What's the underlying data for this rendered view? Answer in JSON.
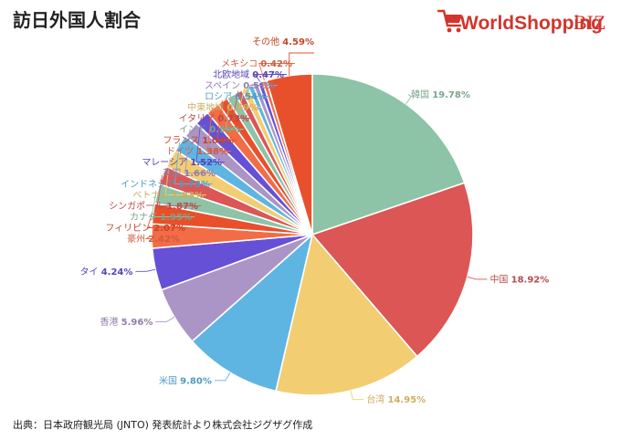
{
  "title": "訪日外国人割合",
  "logo": {
    "brand_world": "World",
    "brand_shopping": "Shopping",
    "brand_biz": "BIZ",
    "icon": "shopping-cart-icon"
  },
  "source": "出典：日本政府観光局 (JNTO) 発表統計より株式会社ジグザグ作成",
  "chart_data": {
    "type": "pie",
    "title": "訪日外国人割合",
    "unit": "%",
    "slices": [
      {
        "label": "韓国",
        "value": 19.78,
        "color": "#8dc3a6"
      },
      {
        "label": "中国",
        "value": 18.92,
        "color": "#dc5656"
      },
      {
        "label": "台湾",
        "value": 14.95,
        "color": "#f2cd72"
      },
      {
        "label": "米国",
        "value": 9.8,
        "color": "#5fb5e2"
      },
      {
        "label": "香港",
        "value": 5.96,
        "color": "#ab94c6"
      },
      {
        "label": "タイ",
        "value": 4.24,
        "color": "#6650d6"
      },
      {
        "label": "豪州",
        "value": 2.42,
        "color": "#f26c46"
      },
      {
        "label": "フィリピン",
        "value": 2.07,
        "color": "#e8502c"
      },
      {
        "label": "カナダ",
        "value": 1.95,
        "color": "#8dc3a6"
      },
      {
        "label": "シンガポール",
        "value": 1.87,
        "color": "#dc5656"
      },
      {
        "label": "ベトナム",
        "value": 1.83,
        "color": "#f2cd72"
      },
      {
        "label": "インドネシア",
        "value": 1.73,
        "color": "#5fb5e2"
      },
      {
        "label": "英国",
        "value": 1.66,
        "color": "#ab94c6"
      },
      {
        "label": "マレーシア",
        "value": 1.52,
        "color": "#6650d6"
      },
      {
        "label": "ドイツ",
        "value": 1.38,
        "color": "#f26c46"
      },
      {
        "label": "フランス",
        "value": 1.04,
        "color": "#e8502c"
      },
      {
        "label": "インド",
        "value": 0.94,
        "color": "#8dc3a6"
      },
      {
        "label": "イタリア",
        "value": 0.73,
        "color": "#dc5656"
      },
      {
        "label": "中東地域",
        "value": 0.69,
        "color": "#f2cd72"
      },
      {
        "label": "ロシア",
        "value": 0.54,
        "color": "#5fb5e2"
      },
      {
        "label": "スペイン",
        "value": 0.51,
        "color": "#ab94c6"
      },
      {
        "label": "北欧地域",
        "value": 0.47,
        "color": "#6650d6"
      },
      {
        "label": "メキシコ",
        "value": 0.42,
        "color": "#f26c46"
      },
      {
        "label": "その他",
        "value": 4.59,
        "color": "#e8502c"
      }
    ]
  }
}
